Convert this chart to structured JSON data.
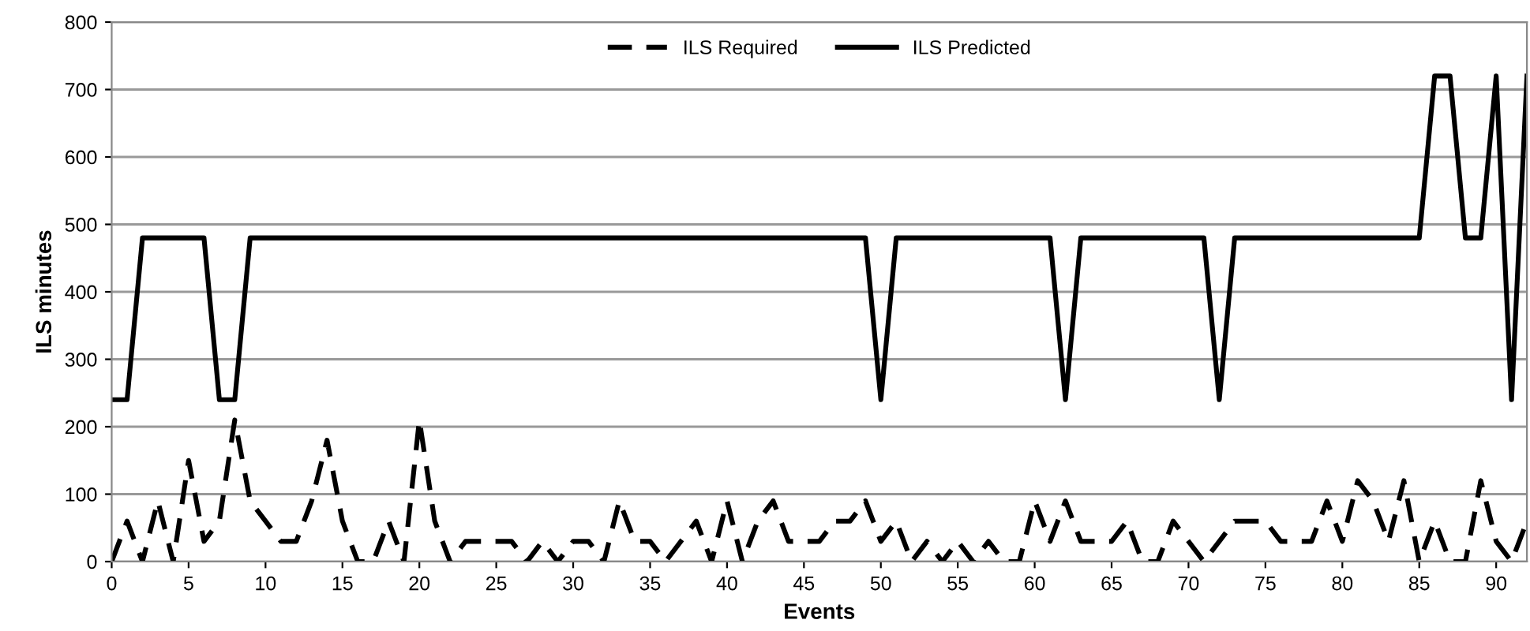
{
  "chart_data": {
    "type": "line",
    "xlabel": "Events",
    "ylabel": "ILS minutes",
    "x": [
      0,
      1,
      2,
      3,
      4,
      5,
      6,
      7,
      8,
      9,
      10,
      11,
      12,
      13,
      14,
      15,
      16,
      17,
      18,
      19,
      20,
      21,
      22,
      23,
      24,
      25,
      26,
      27,
      28,
      29,
      30,
      31,
      32,
      33,
      34,
      35,
      36,
      37,
      38,
      39,
      40,
      41,
      42,
      43,
      44,
      45,
      46,
      47,
      48,
      49,
      50,
      51,
      52,
      53,
      54,
      55,
      56,
      57,
      58,
      59,
      60,
      61,
      62,
      63,
      64,
      65,
      66,
      67,
      68,
      69,
      70,
      71,
      72,
      73,
      74,
      75,
      76,
      77,
      78,
      79,
      80,
      81,
      82,
      83,
      84,
      85,
      86,
      87,
      88,
      89,
      90,
      91,
      92
    ],
    "xlim": [
      0,
      92
    ],
    "xticks": [
      0,
      5,
      10,
      15,
      20,
      25,
      30,
      35,
      40,
      45,
      50,
      55,
      60,
      65,
      70,
      75,
      80,
      85,
      90
    ],
    "ylim": [
      0,
      800
    ],
    "yticks": [
      0,
      100,
      200,
      300,
      400,
      500,
      600,
      700,
      800
    ],
    "grid": "y",
    "legend": "top",
    "marker": "none",
    "series": [
      {
        "name": "ILS Required",
        "color": "#000000",
        "line_style": "dashed",
        "values": [
          0,
          60,
          0,
          90,
          0,
          150,
          30,
          60,
          210,
          90,
          60,
          30,
          30,
          90,
          180,
          60,
          0,
          0,
          60,
          0,
          210,
          60,
          0,
          30,
          30,
          30,
          30,
          0,
          30,
          0,
          30,
          30,
          0,
          90,
          30,
          30,
          0,
          30,
          60,
          0,
          90,
          0,
          60,
          90,
          30,
          30,
          30,
          60,
          60,
          90,
          30,
          60,
          0,
          30,
          0,
          30,
          0,
          30,
          0,
          0,
          90,
          30,
          90,
          30,
          30,
          30,
          60,
          0,
          0,
          60,
          30,
          0,
          30,
          60,
          60,
          60,
          30,
          30,
          30,
          90,
          30,
          120,
          90,
          30,
          120,
          0,
          60,
          0,
          0,
          120,
          30,
          0,
          60
        ]
      },
      {
        "name": "ILS Predicted",
        "color": "#000000",
        "line_style": "solid",
        "values": [
          240,
          240,
          480,
          480,
          480,
          480,
          480,
          240,
          240,
          480,
          480,
          480,
          480,
          480,
          480,
          480,
          480,
          480,
          480,
          480,
          480,
          480,
          480,
          480,
          480,
          480,
          480,
          480,
          480,
          480,
          480,
          480,
          480,
          480,
          480,
          480,
          480,
          480,
          480,
          480,
          480,
          480,
          480,
          480,
          480,
          480,
          480,
          480,
          480,
          480,
          240,
          480,
          480,
          480,
          480,
          480,
          480,
          480,
          480,
          480,
          480,
          480,
          240,
          480,
          480,
          480,
          480,
          480,
          480,
          480,
          480,
          480,
          240,
          480,
          480,
          480,
          480,
          480,
          480,
          480,
          480,
          480,
          480,
          480,
          480,
          480,
          720,
          720,
          480,
          480,
          720,
          240,
          720
        ]
      }
    ]
  }
}
